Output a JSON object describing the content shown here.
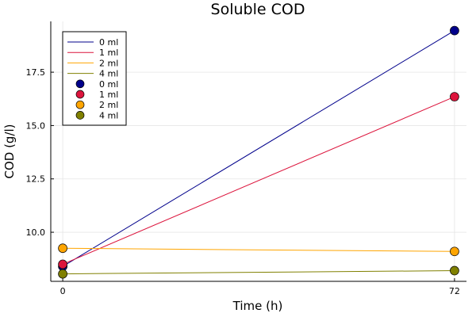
{
  "chart_data": {
    "type": "line",
    "title": "Soluble COD",
    "xlabel": "Time (h)",
    "ylabel": "COD (g/l)",
    "x": [
      0,
      72
    ],
    "xticks": [
      "0",
      "72"
    ],
    "yticks": [
      "10.0",
      "12.5",
      "15.0",
      "17.5"
    ],
    "ytick_values": [
      10.0,
      12.5,
      15.0,
      17.5
    ],
    "xlim": [
      -2.2,
      74.2
    ],
    "ylim": [
      7.7,
      19.88
    ],
    "grid": true,
    "legend_position": "top-left",
    "series": [
      {
        "name": "0 ml",
        "color": "#00008b",
        "values": [
          8.4,
          19.45
        ]
      },
      {
        "name": "1 ml",
        "color": "#dc143c",
        "values": [
          8.5,
          16.35
        ]
      },
      {
        "name": "2 ml",
        "color": "#ffa500",
        "values": [
          9.25,
          9.1
        ]
      },
      {
        "name": "4 ml",
        "color": "#808000",
        "values": [
          8.05,
          8.2
        ]
      }
    ]
  }
}
